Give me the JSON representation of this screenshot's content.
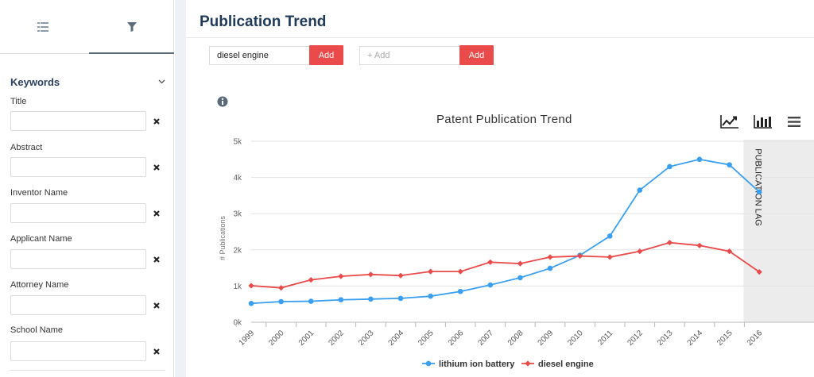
{
  "sidebar": {
    "tabs": [
      {
        "icon": "list-icon"
      },
      {
        "icon": "filter-icon"
      }
    ],
    "section_title": "Keywords",
    "fields": [
      {
        "label": "Title",
        "value": ""
      },
      {
        "label": "Abstract",
        "value": ""
      },
      {
        "label": "Inventor Name",
        "value": ""
      },
      {
        "label": "Applicant Name",
        "value": ""
      },
      {
        "label": "Attorney Name",
        "value": ""
      },
      {
        "label": "School Name",
        "value": ""
      }
    ]
  },
  "main": {
    "page_title": "Publication Trend",
    "keyword_input": {
      "value": "diesel engine"
    },
    "new_keyword_input": {
      "placeholder": "+ Add"
    },
    "add_label": "Add"
  },
  "chart_data": {
    "type": "line",
    "title": "Patent Publication Trend",
    "ylabel": "# Publications",
    "xlabel": "",
    "categories": [
      "1999",
      "2000",
      "2001",
      "2002",
      "2003",
      "2004",
      "2005",
      "2006",
      "2007",
      "2008",
      "2009",
      "2010",
      "2011",
      "2012",
      "2013",
      "2014",
      "2015",
      "2016"
    ],
    "y_ticks": [
      "0k",
      "1k",
      "2k",
      "3k",
      "4k",
      "5k"
    ],
    "ylim": [
      0,
      5000
    ],
    "grid": true,
    "legend": "bottom",
    "shaded_band": {
      "label": "PUBLICATION LAG",
      "from": "2016",
      "to": "2016"
    },
    "series": [
      {
        "name": "lithium ion battery",
        "color": "#3a9ff0",
        "marker": "circle",
        "values": [
          520,
          570,
          580,
          620,
          640,
          660,
          720,
          850,
          1030,
          1230,
          1490,
          1850,
          2380,
          3650,
          4300,
          4500,
          4350,
          3600
        ]
      },
      {
        "name": "diesel engine",
        "color": "#ea4a49",
        "marker": "diamond",
        "values": [
          1010,
          950,
          1170,
          1270,
          1320,
          1290,
          1400,
          1400,
          1660,
          1620,
          1800,
          1830,
          1800,
          1960,
          2200,
          2120,
          1960,
          1390
        ]
      }
    ]
  }
}
